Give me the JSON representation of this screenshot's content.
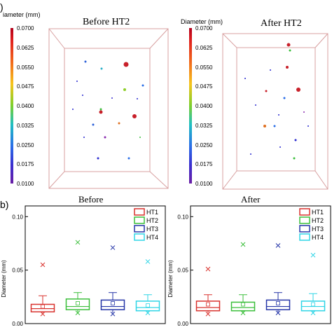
{
  "panel_a": {
    "letter": ")",
    "colorbar_title": "iameter (mm)",
    "colorbar_title_right": "Diameter (mm)",
    "colorbar_ticks": [
      "0.0700",
      "0.0625",
      "0.0550",
      "0.0475",
      "0.0400",
      "0.0325",
      "0.0250",
      "0.0175",
      "0.0100"
    ],
    "left_title": "Before HT2",
    "right_title": "After HT2"
  },
  "panel_b": {
    "letter": "b)"
  },
  "chart_data": [
    {
      "type": "box",
      "title": "Before",
      "ylabel": "Diameter (mm)",
      "ylim": [
        0,
        0.11
      ],
      "yticks": [
        "0.00",
        "0.05",
        "0.10"
      ],
      "legend": [
        "HT1",
        "HT2",
        "HT3",
        "HT4"
      ],
      "legend_position": "top-right",
      "colors": [
        "#d9322e",
        "#3cbf3c",
        "#2636a8",
        "#2fd5e6"
      ],
      "series": [
        {
          "name": "HT1",
          "q1": 0.011,
          "median": 0.014,
          "q3": 0.018,
          "whisker_low": 0.01,
          "whisker_high": 0.026,
          "mean": 0.016,
          "max_x": 0.055,
          "min_x": 0.009
        },
        {
          "name": "HT2",
          "q1": 0.013,
          "median": 0.016,
          "q3": 0.023,
          "whisker_low": 0.01,
          "whisker_high": 0.029,
          "mean": 0.019,
          "max_x": 0.076,
          "min_x": 0.01
        },
        {
          "name": "HT3",
          "q1": 0.013,
          "median": 0.016,
          "q3": 0.022,
          "whisker_low": 0.01,
          "whisker_high": 0.029,
          "mean": 0.019,
          "max_x": 0.071,
          "min_x": 0.009
        },
        {
          "name": "HT4",
          "q1": 0.012,
          "median": 0.015,
          "q3": 0.021,
          "whisker_low": 0.01,
          "whisker_high": 0.027,
          "mean": 0.017,
          "max_x": 0.058,
          "min_x": 0.01
        }
      ]
    },
    {
      "type": "box",
      "title": "After",
      "ylabel": "Diameter (mm)",
      "ylim": [
        0,
        0.11
      ],
      "yticks": [
        "0.00",
        "0.05",
        "0.10"
      ],
      "legend": [
        "HT1",
        "HT2",
        "HT3",
        "HT4"
      ],
      "legend_position": "top-right",
      "colors": [
        "#d9322e",
        "#3cbf3c",
        "#2636a8",
        "#2fd5e6"
      ],
      "series": [
        {
          "name": "HT1",
          "q1": 0.012,
          "median": 0.015,
          "q3": 0.021,
          "whisker_low": 0.01,
          "whisker_high": 0.027,
          "mean": 0.018,
          "max_x": 0.051,
          "min_x": 0.009
        },
        {
          "name": "HT2",
          "q1": 0.012,
          "median": 0.015,
          "q3": 0.02,
          "whisker_low": 0.01,
          "whisker_high": 0.027,
          "mean": 0.018,
          "max_x": 0.074,
          "min_x": 0.01
        },
        {
          "name": "HT3",
          "q1": 0.013,
          "median": 0.016,
          "q3": 0.022,
          "whisker_low": 0.01,
          "whisker_high": 0.029,
          "mean": 0.019,
          "max_x": 0.073,
          "min_x": 0.01
        },
        {
          "name": "HT4",
          "q1": 0.012,
          "median": 0.016,
          "q3": 0.021,
          "whisker_low": 0.01,
          "whisker_high": 0.028,
          "mean": 0.018,
          "max_x": 0.064,
          "min_x": 0.01
        }
      ]
    }
  ]
}
